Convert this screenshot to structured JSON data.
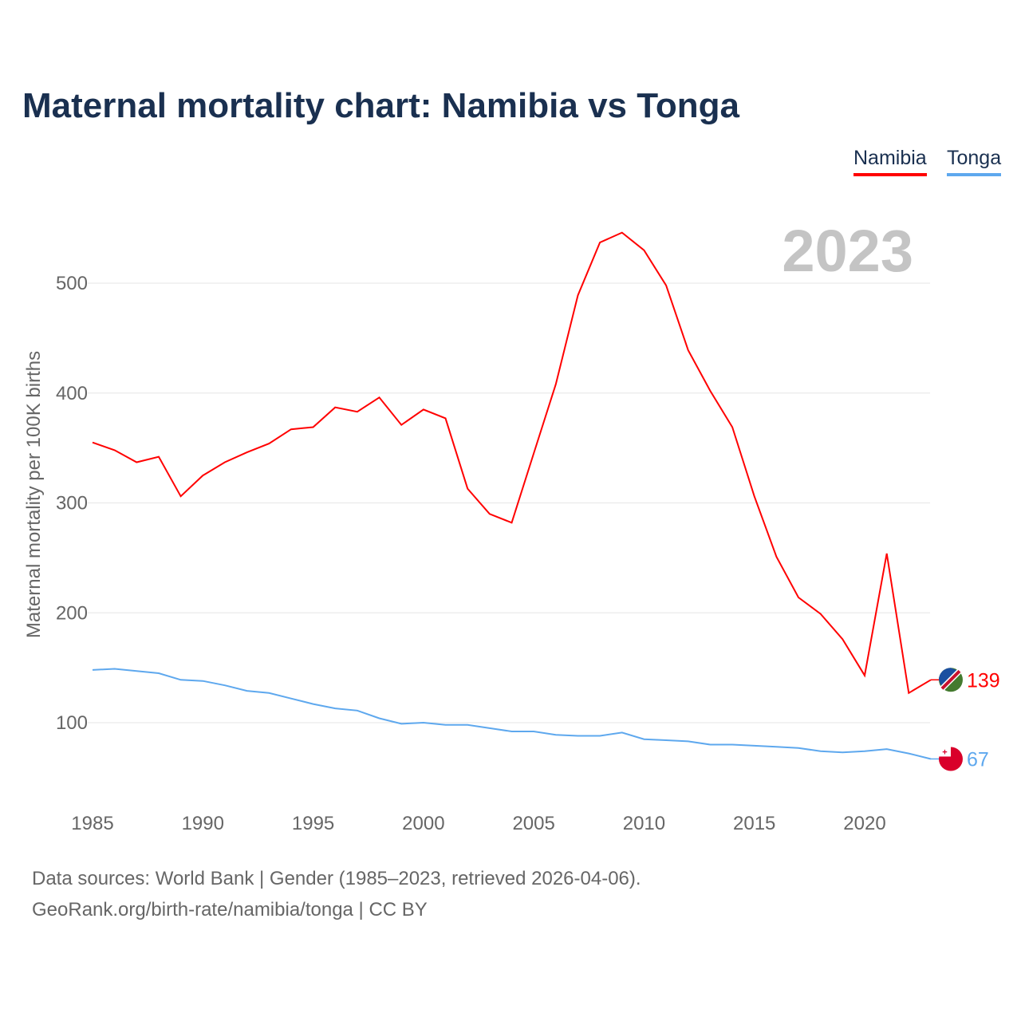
{
  "title": "Maternal mortality chart: Namibia vs Tonga",
  "legend": [
    "Namibia",
    "Tonga"
  ],
  "year_label": "2023",
  "footer": {
    "line1": "Data sources: World Bank | Gender (1985–2023, retrieved 2026-04-06).",
    "line2": "GeoRank.org/birth-rate/namibia/tonga | CC BY"
  },
  "chart_data": {
    "type": "line",
    "title": "Maternal mortality chart: Namibia vs Tonga",
    "xlabel": "",
    "ylabel": "Maternal mortality per 100K births",
    "xlim": [
      1985,
      2023
    ],
    "ylim": [
      40,
      570
    ],
    "xticks": [
      1985,
      1990,
      1995,
      2000,
      2005,
      2010,
      2015,
      2020
    ],
    "yticks": [
      100,
      200,
      300,
      400,
      500
    ],
    "grid": true,
    "legend_position": "top-right",
    "x": [
      1985,
      1986,
      1987,
      1988,
      1989,
      1990,
      1991,
      1992,
      1993,
      1994,
      1995,
      1996,
      1997,
      1998,
      1999,
      2000,
      2001,
      2002,
      2003,
      2004,
      2005,
      2006,
      2007,
      2008,
      2009,
      2010,
      2011,
      2012,
      2013,
      2014,
      2015,
      2016,
      2017,
      2018,
      2019,
      2020,
      2021,
      2022,
      2023
    ],
    "series": [
      {
        "name": "Namibia",
        "color": "#ff0000",
        "end_label": "139",
        "values": [
          355,
          348,
          337,
          342,
          306,
          325,
          337,
          346,
          354,
          367,
          369,
          387,
          383,
          396,
          371,
          385,
          377,
          313,
          290,
          282,
          345,
          408,
          489,
          537,
          546,
          530,
          498,
          439,
          402,
          369,
          306,
          251,
          214,
          199,
          176,
          143,
          254,
          127,
          139
        ]
      },
      {
        "name": "Tonga",
        "color": "#5ea8ee",
        "end_label": "67",
        "values": [
          148,
          149,
          147,
          145,
          139,
          138,
          134,
          129,
          127,
          122,
          117,
          113,
          111,
          104,
          99,
          100,
          98,
          98,
          95,
          92,
          92,
          89,
          88,
          88,
          91,
          85,
          84,
          83,
          80,
          80,
          79,
          78,
          77,
          74,
          73,
          74,
          76,
          72,
          67
        ]
      }
    ]
  }
}
